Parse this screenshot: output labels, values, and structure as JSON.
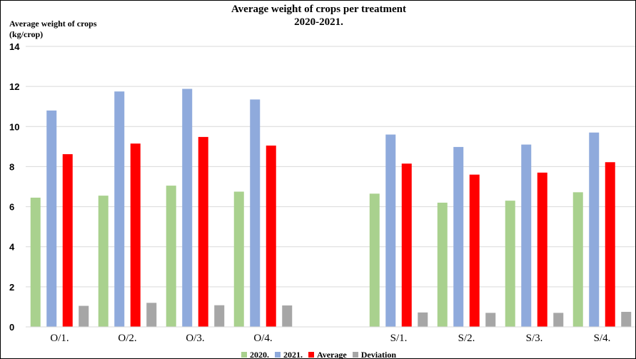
{
  "chart_data": {
    "type": "bar",
    "title": "Average weight of crops per treatment",
    "subtitle": "2020-2021.",
    "ylabel_line1": "Average weight of crops",
    "ylabel_line2": "(kg/crop)",
    "xlabel": "",
    "ylim": [
      0,
      14
    ],
    "yticks": [
      "0",
      "2",
      "4",
      "6",
      "8",
      "10",
      "12",
      "14"
    ],
    "grid": true,
    "legend_position": "bottom",
    "categories": [
      "O/1.",
      "O/2.",
      "O/3.",
      "O/4.",
      "",
      "S/1.",
      "S/2.",
      "S/3.",
      "S/4."
    ],
    "series": [
      {
        "name": "2020.",
        "color": "#a9d18e",
        "values": [
          6.45,
          6.55,
          7.05,
          6.75,
          null,
          6.65,
          6.2,
          6.3,
          6.72
        ]
      },
      {
        "name": "2021.",
        "color": "#8faadc",
        "values": [
          10.8,
          11.75,
          11.88,
          11.35,
          null,
          9.6,
          8.98,
          9.1,
          9.7
        ]
      },
      {
        "name": "Average",
        "color": "#ff0000",
        "values": [
          8.62,
          9.15,
          9.48,
          9.05,
          null,
          8.15,
          7.6,
          7.7,
          8.22
        ]
      },
      {
        "name": "Deviation",
        "color": "#a6a6a6",
        "values": [
          1.05,
          1.2,
          1.08,
          1.07,
          null,
          0.72,
          0.7,
          0.7,
          0.75
        ]
      }
    ]
  }
}
